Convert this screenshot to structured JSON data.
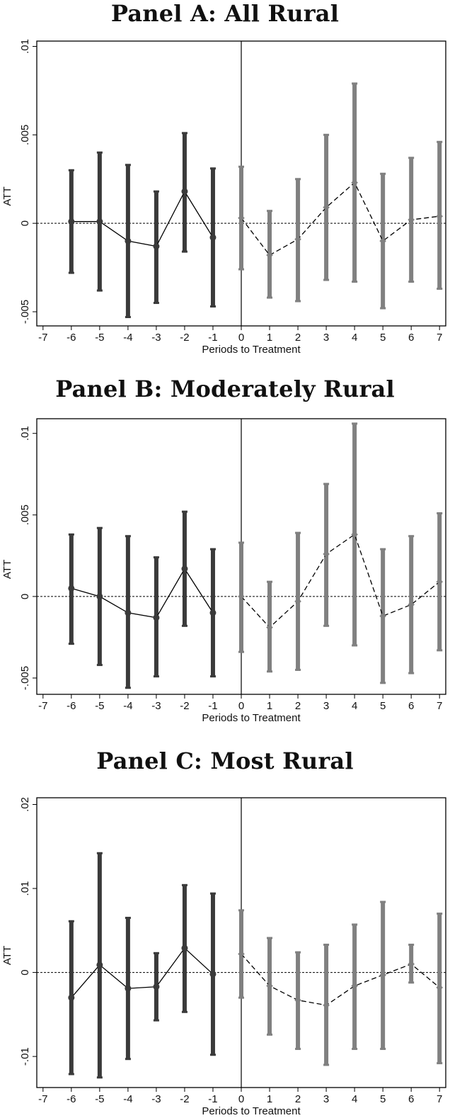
{
  "chart_data": [
    {
      "type": "line",
      "title": "Panel A: All Rural",
      "xlabel": "Periods to Treatment",
      "ylabel": "ATT",
      "xlim": [
        -7,
        7
      ],
      "ylim": [
        -0.0058,
        0.0103
      ],
      "x_ticks": [
        -7,
        -6,
        -5,
        -4,
        -3,
        -2,
        -1,
        0,
        1,
        2,
        3,
        4,
        5,
        6,
        7
      ],
      "y_ticks": [
        {
          "value": -0.005,
          "label": "-.005"
        },
        {
          "value": 0,
          "label": "0"
        },
        {
          "value": 0.005,
          "label": ".005"
        },
        {
          "value": 0.01,
          "label": ".01"
        }
      ],
      "grid": false,
      "vline_x": 0,
      "hline_y": 0,
      "series": [
        {
          "style": "solid",
          "color": "#3a3a3a",
          "marker": "circle",
          "x": [
            -6,
            -5,
            -4,
            -3,
            -2,
            -1
          ],
          "y": [
            0.0001,
            0.0001,
            -0.001,
            -0.0013,
            0.0018,
            -0.0008
          ],
          "lower": [
            -0.0028,
            -0.0038,
            -0.0053,
            -0.0045,
            -0.0016,
            -0.0047
          ],
          "upper": [
            0.003,
            0.004,
            0.0033,
            0.0018,
            0.0051,
            0.0031
          ]
        },
        {
          "style": "dashed",
          "color": "#808080",
          "marker": "diamond",
          "x": [
            0,
            1,
            2,
            3,
            4,
            5,
            6,
            7
          ],
          "y": [
            0.0003,
            -0.0018,
            -0.0009,
            0.0009,
            0.0023,
            -0.001,
            0.0002,
            0.0004
          ],
          "lower": [
            -0.0026,
            -0.0042,
            -0.0044,
            -0.0032,
            -0.0033,
            -0.0048,
            -0.0033,
            -0.0037
          ],
          "upper": [
            0.0032,
            0.0007,
            0.0025,
            0.005,
            0.0079,
            0.0028,
            0.0037,
            0.0046
          ]
        }
      ]
    },
    {
      "type": "line",
      "title": "Panel B: Moderately Rural",
      "xlabel": "Periods to Treatment",
      "ylabel": "ATT",
      "xlim": [
        -7,
        7
      ],
      "ylim": [
        -0.006,
        0.0109
      ],
      "x_ticks": [
        -7,
        -6,
        -5,
        -4,
        -3,
        -2,
        -1,
        0,
        1,
        2,
        3,
        4,
        5,
        6,
        7
      ],
      "y_ticks": [
        {
          "value": -0.005,
          "label": "-.005"
        },
        {
          "value": 0,
          "label": "0"
        },
        {
          "value": 0.005,
          "label": ".005"
        },
        {
          "value": 0.01,
          "label": ".01"
        }
      ],
      "grid": false,
      "vline_x": 0,
      "hline_y": 0,
      "series": [
        {
          "style": "solid",
          "color": "#3a3a3a",
          "marker": "circle",
          "x": [
            -6,
            -5,
            -4,
            -3,
            -2,
            -1
          ],
          "y": [
            0.0005,
            0.0,
            -0.001,
            -0.0013,
            0.0017,
            -0.001
          ],
          "lower": [
            -0.0029,
            -0.0042,
            -0.0056,
            -0.0049,
            -0.0018,
            -0.0049
          ],
          "upper": [
            0.0038,
            0.0042,
            0.0037,
            0.0024,
            0.0052,
            0.0029
          ]
        },
        {
          "style": "dashed",
          "color": "#808080",
          "marker": "diamond",
          "x": [
            0,
            1,
            2,
            3,
            4,
            5,
            6,
            7
          ],
          "y": [
            0.0,
            -0.0019,
            -0.0003,
            0.0026,
            0.0038,
            -0.0012,
            -0.0005,
            0.0009
          ],
          "lower": [
            -0.0034,
            -0.0046,
            -0.0045,
            -0.0018,
            -0.003,
            -0.0053,
            -0.0047,
            -0.0033
          ],
          "upper": [
            0.0033,
            0.0009,
            0.0039,
            0.0069,
            0.0106,
            0.0029,
            0.0037,
            0.0051
          ]
        }
      ]
    },
    {
      "type": "line",
      "title": "Panel C: Most Rural",
      "xlabel": "Periods to Treatment",
      "ylabel": "ATT",
      "xlim": [
        -7,
        7
      ],
      "ylim": [
        -0.0137,
        0.0208
      ],
      "x_ticks": [
        -7,
        -6,
        -5,
        -4,
        -3,
        -2,
        -1,
        0,
        1,
        2,
        3,
        4,
        5,
        6,
        7
      ],
      "y_ticks": [
        {
          "value": -0.01,
          "label": "-.01"
        },
        {
          "value": 0,
          "label": "0"
        },
        {
          "value": 0.01,
          "label": ".01"
        },
        {
          "value": 0.02,
          "label": ".02"
        }
      ],
      "grid": false,
      "vline_x": 0,
      "hline_y": 0,
      "series": [
        {
          "style": "solid",
          "color": "#3a3a3a",
          "marker": "circle",
          "x": [
            -6,
            -5,
            -4,
            -3,
            -2,
            -1
          ],
          "y": [
            -0.003,
            0.0009,
            -0.0019,
            -0.0017,
            0.0029,
            -0.0002
          ],
          "lower": [
            -0.0121,
            -0.0125,
            -0.0103,
            -0.0057,
            -0.0047,
            -0.0098
          ],
          "upper": [
            0.0061,
            0.0142,
            0.0065,
            0.0023,
            0.0104,
            0.0094
          ]
        },
        {
          "style": "dashed",
          "color": "#808080",
          "marker": "diamond",
          "x": [
            0,
            1,
            2,
            3,
            4,
            5,
            6,
            7
          ],
          "y": [
            0.0022,
            -0.0016,
            -0.0033,
            -0.0039,
            -0.0016,
            -0.0003,
            0.001,
            -0.0018
          ],
          "lower": [
            -0.003,
            -0.0074,
            -0.0091,
            -0.011,
            -0.0091,
            -0.0091,
            -0.0012,
            -0.0108
          ],
          "upper": [
            0.0074,
            0.0041,
            0.0024,
            0.0033,
            0.0057,
            0.0084,
            0.0033,
            0.007
          ]
        }
      ]
    }
  ]
}
